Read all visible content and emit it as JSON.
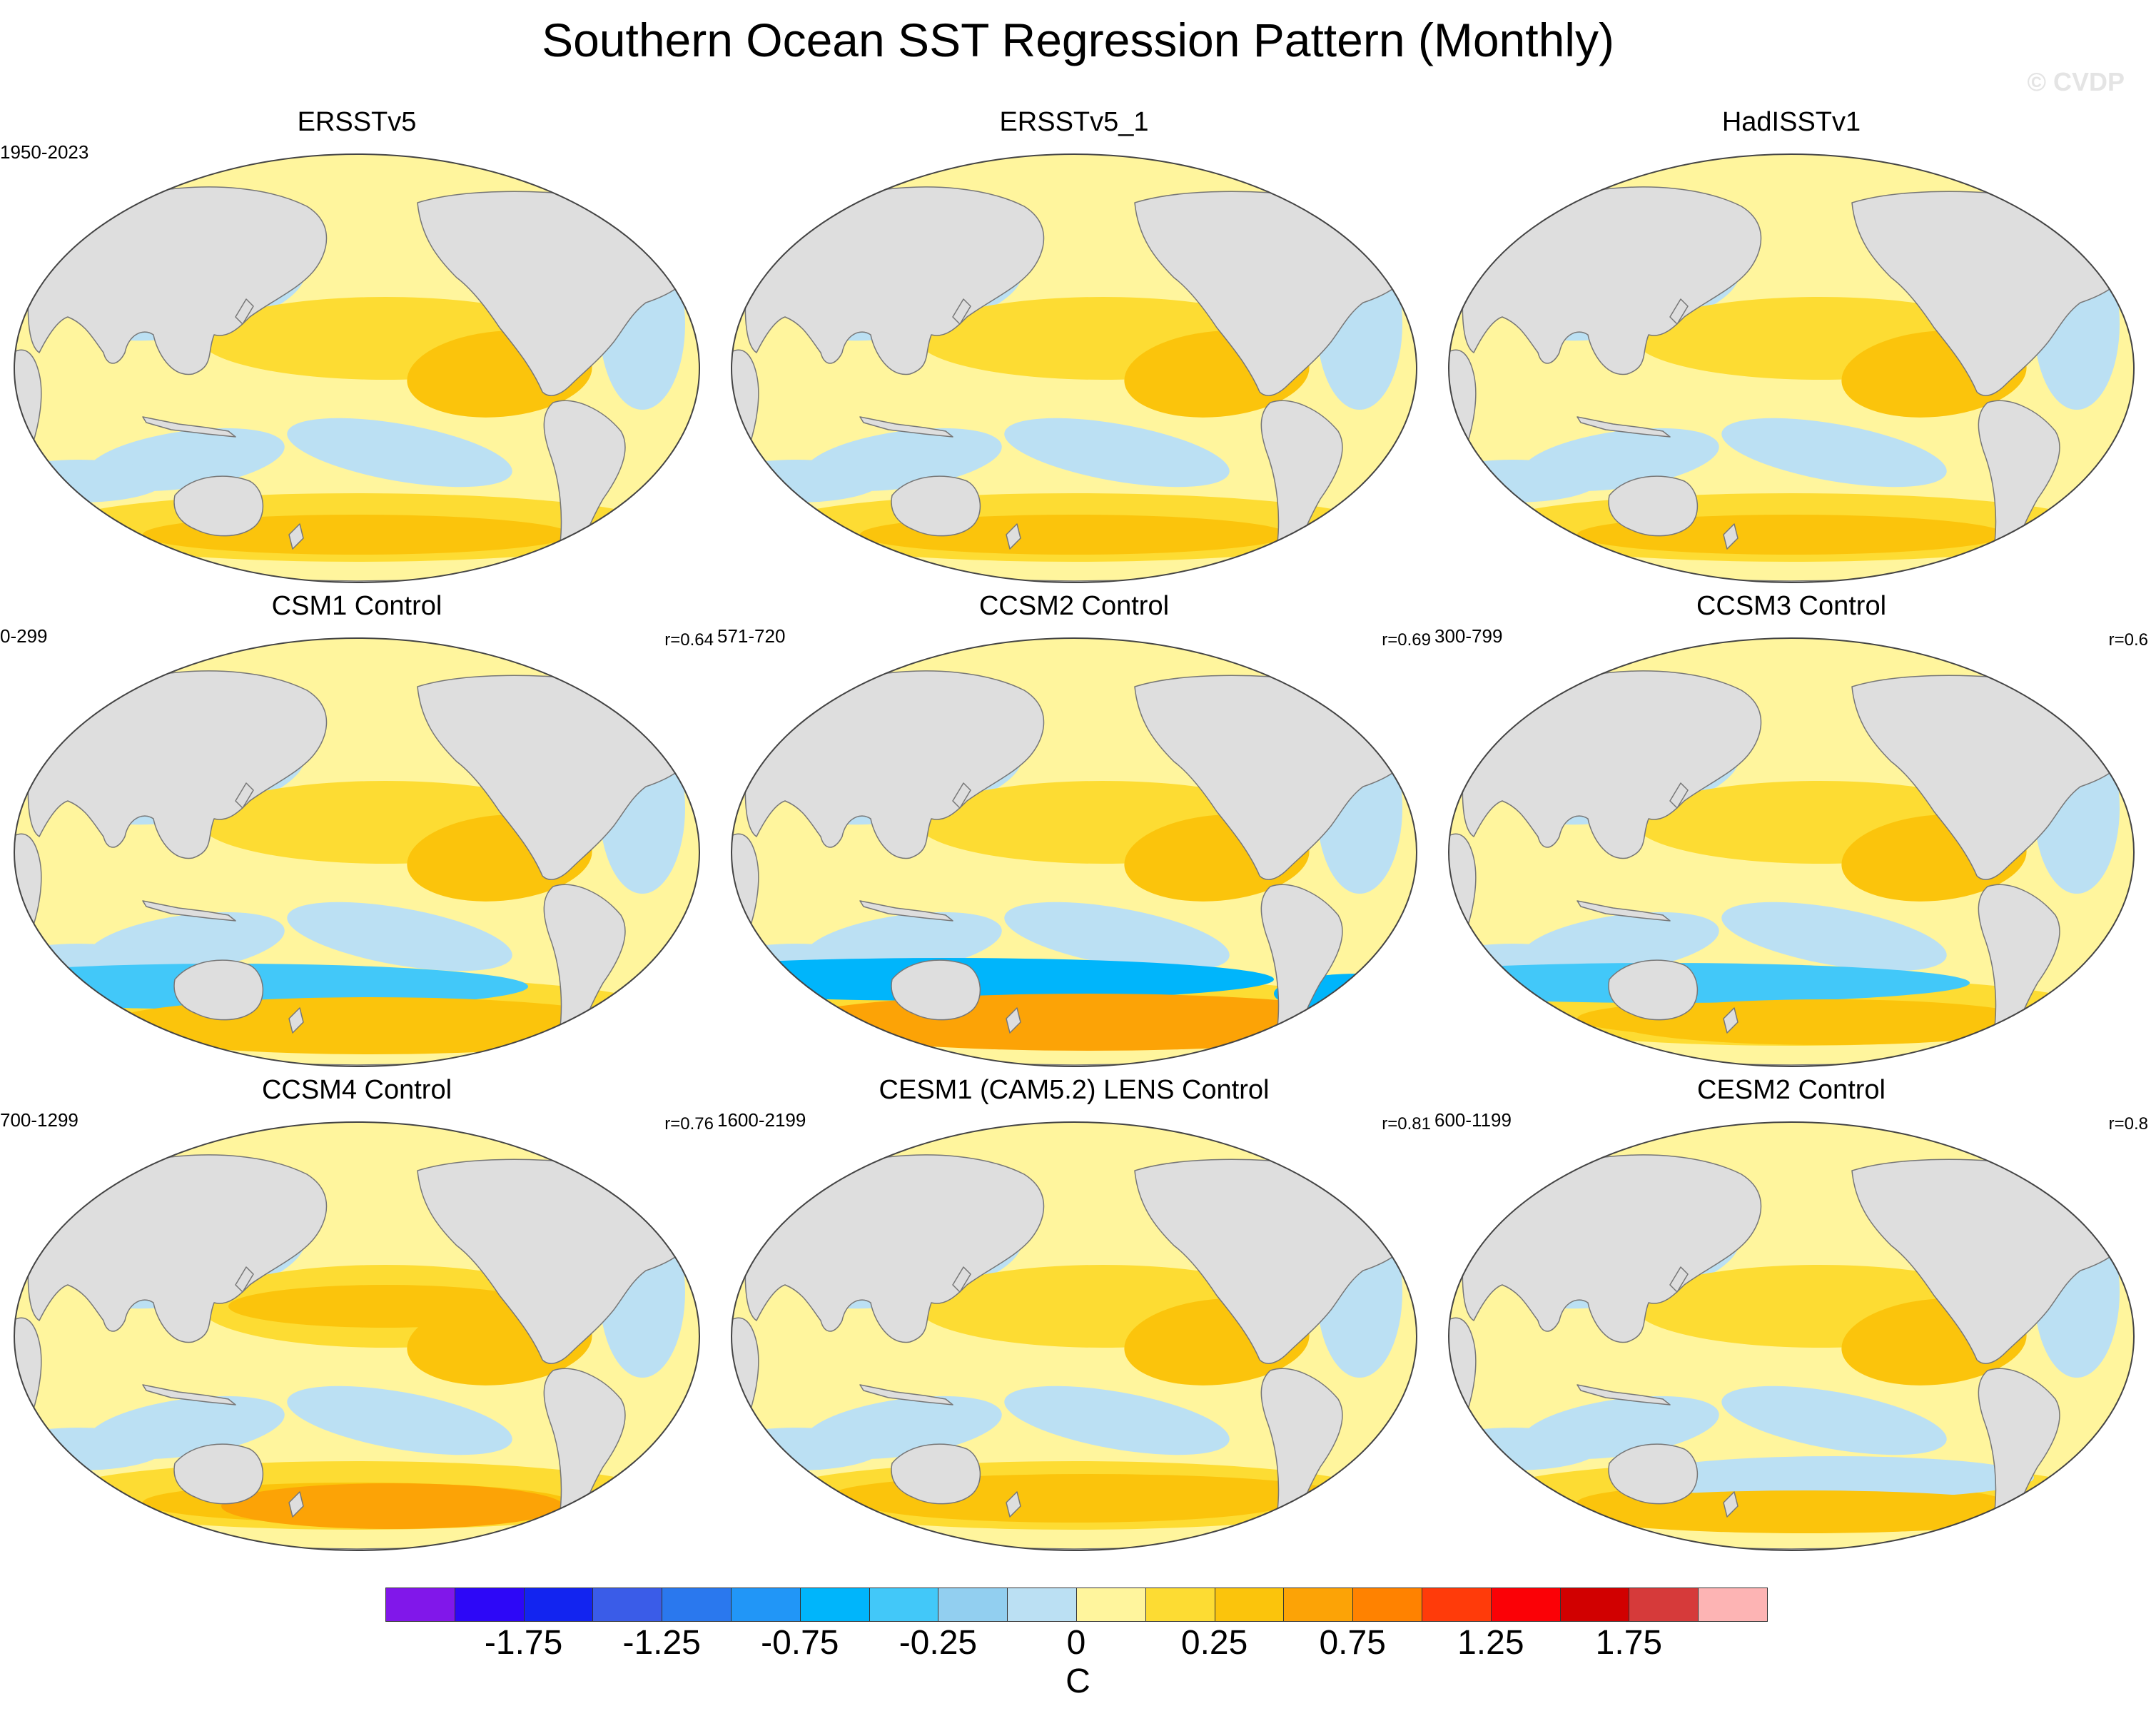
{
  "title": "Southern Ocean SST Regression Pattern (Monthly)",
  "watermark": "© CVDP",
  "colors": {
    "land": "#dedede",
    "coast": "#777777",
    "palette": [
      "#8117ea",
      "#2d07f7",
      "#1224f0",
      "#3a5ce8",
      "#2a78ee",
      "#2196f7",
      "#00b5fb",
      "#42c8f9",
      "#92cff0",
      "#bbe0f3",
      "#fff59d",
      "#fddc33",
      "#fbc40c",
      "#fca306",
      "#ff8200",
      "#ff3b0a",
      "#fb0106",
      "#d10000",
      "#d63a3a",
      "#fdb4b4"
    ]
  },
  "panels": [
    {
      "title": "ERSSTv5",
      "period": "1950-2023",
      "corr": ""
    },
    {
      "title": "ERSSTv5_1",
      "period": "",
      "corr": ""
    },
    {
      "title": "HadISSTv1",
      "period": "",
      "corr": ""
    },
    {
      "title": "CSM1 Control",
      "period": "0-299",
      "corr": "r=0.64"
    },
    {
      "title": "CCSM2 Control",
      "period": "571-720",
      "corr": "r=0.69"
    },
    {
      "title": "CCSM3 Control",
      "period": "300-799",
      "corr": "r=0.6"
    },
    {
      "title": "CCSM4 Control",
      "period": "700-1299",
      "corr": "r=0.76"
    },
    {
      "title": "CESM1 (CAM5.2) LENS Control",
      "period": "1600-2199",
      "corr": "r=0.81"
    },
    {
      "title": "CESM2 Control",
      "period": "600-1199",
      "corr": "r=0.8"
    }
  ],
  "colorbar": {
    "ticks": [
      "-1.75",
      "-1.25",
      "-0.75",
      "-0.25",
      "0",
      "0.25",
      "0.75",
      "1.25",
      "1.75"
    ],
    "unit": "C"
  }
}
